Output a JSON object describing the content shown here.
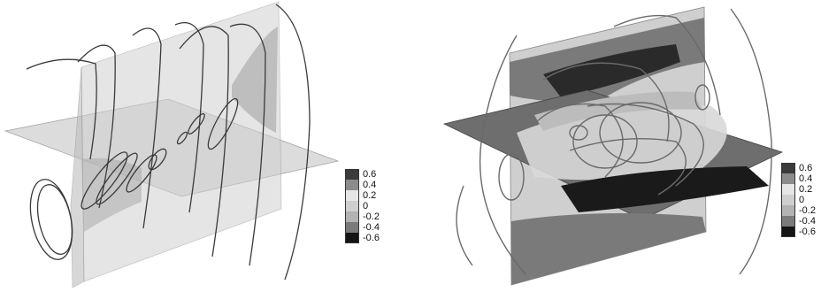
{
  "legend_left": {
    "items": [
      {
        "label": "0.6",
        "color": "#3b3b3b"
      },
      {
        "label": "0.4",
        "color": "#8c8c8c"
      },
      {
        "label": "0.2",
        "color": "#e6e6e6"
      },
      {
        "label": "0",
        "color": "#cfcfcf"
      },
      {
        "label": "-0.2",
        "color": "#b3b3b3"
      },
      {
        "label": "-0.4",
        "color": "#7a7a7a"
      },
      {
        "label": "-0.6",
        "color": "#141414"
      }
    ]
  },
  "legend_right": {
    "items": [
      {
        "label": "0.6",
        "color": "#3b3b3b"
      },
      {
        "label": "0.4",
        "color": "#8c8c8c"
      },
      {
        "label": "0.2",
        "color": "#e6e6e6"
      },
      {
        "label": "0",
        "color": "#cfcfcf"
      },
      {
        "label": "-0.2",
        "color": "#b3b3b3"
      },
      {
        "label": "-0.4",
        "color": "#7a7a7a"
      },
      {
        "label": "-0.6",
        "color": "#141414"
      }
    ]
  }
}
